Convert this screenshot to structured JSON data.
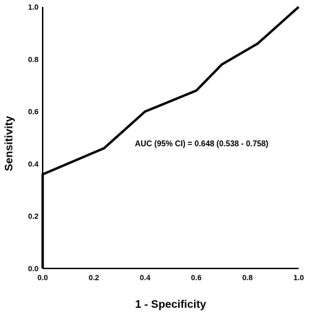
{
  "chart_data": {
    "type": "line",
    "xlabel": "1 - Specificity",
    "ylabel": "Sensitivity",
    "xlim": [
      0,
      1
    ],
    "ylim": [
      0,
      1
    ],
    "xticks": [
      "0.0",
      "0.2",
      "0.4",
      "0.6",
      "0.8",
      "1.0"
    ],
    "yticks": [
      "0.0",
      "0.2",
      "0.4",
      "0.6",
      "0.8",
      "1.0"
    ],
    "grid": false,
    "annotation": "AUC (95% CI) = 0.648 (0.538 - 0.758)",
    "series": [
      {
        "x": [
          0.0,
          0.0,
          0.24,
          0.4,
          0.6,
          0.7,
          0.84,
          1.0
        ],
        "y": [
          0.0,
          0.36,
          0.46,
          0.6,
          0.68,
          0.78,
          0.86,
          1.0
        ]
      }
    ],
    "line_color": "#000000"
  }
}
